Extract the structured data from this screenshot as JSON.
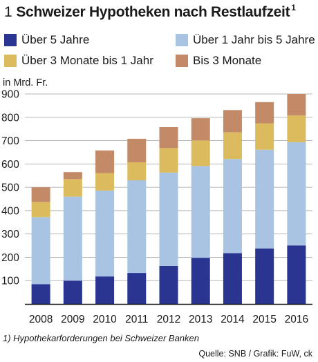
{
  "title": {
    "number": "1",
    "text": "Schweizer Hypotheken nach Restlaufzeit",
    "footnote_mark": "1"
  },
  "unit_label": "in Mrd. Fr.",
  "footnote": "1) Hypothekarforderungen bei Schweizer Banken",
  "source": "Quelle: SNB / Grafik: FuW, ck",
  "colors": {
    "ueber_5": "#2a3591",
    "ueber_1_bis_5": "#a8c4e2",
    "ueber_3m_bis_1": "#dcbb5f",
    "bis_3m": "#c28a67"
  },
  "chart_data": {
    "type": "bar",
    "stacked": true,
    "categories": [
      "2008",
      "2009",
      "2010",
      "2011",
      "2012",
      "2013",
      "2014",
      "2015",
      "2016"
    ],
    "ylim": [
      0,
      900
    ],
    "yticks": [
      100,
      200,
      300,
      400,
      500,
      600,
      700,
      800,
      900
    ],
    "ylabel": "in Mrd. Fr.",
    "grid": true,
    "legend_position": "top",
    "series": [
      {
        "name": "Über 5 Jahre",
        "color_key": "ueber_5",
        "values": [
          85,
          100,
          118,
          133,
          163,
          198,
          218,
          238,
          251
        ]
      },
      {
        "name": "Über 1 Jahr bis 5 Jahre",
        "color_key": "ueber_1_bis_5",
        "values": [
          287,
          360,
          368,
          397,
          400,
          393,
          403,
          423,
          442
        ]
      },
      {
        "name": "Über 3 Monate bis 1 Jahr",
        "color_key": "ueber_3m_bis_1",
        "values": [
          65,
          75,
          75,
          77,
          105,
          110,
          115,
          113,
          115
        ]
      },
      {
        "name": "Bis 3 Monate",
        "color_key": "bis_3m",
        "values": [
          63,
          30,
          97,
          101,
          90,
          95,
          95,
          91,
          92
        ]
      }
    ]
  }
}
